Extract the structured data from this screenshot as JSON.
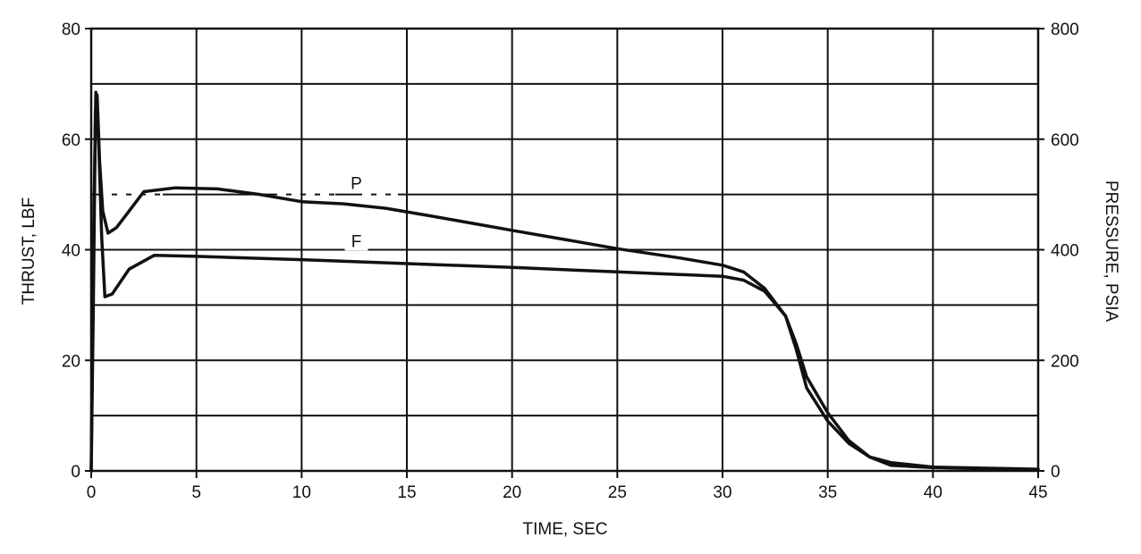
{
  "chart_data": {
    "type": "line",
    "xlabel": "TIME, SEC",
    "ylabel_left": "THRUST, LBF",
    "ylabel_right": "PRESSURE, PSIA",
    "xlim": [
      0,
      45
    ],
    "ylim_left": [
      0,
      80
    ],
    "ylim_right": [
      0,
      800
    ],
    "x_ticks": [
      0,
      5,
      10,
      15,
      20,
      25,
      30,
      35,
      40,
      45
    ],
    "y_ticks_left": [
      0,
      20,
      40,
      60,
      80
    ],
    "y_ticks_right": [
      0,
      200,
      400,
      600,
      800
    ],
    "grid": true,
    "series": [
      {
        "name": "P",
        "axis": "right",
        "points": [
          [
            0,
            0
          ],
          [
            0.1,
            300
          ],
          [
            0.2,
            650
          ],
          [
            0.28,
            680
          ],
          [
            0.4,
            560
          ],
          [
            0.55,
            470
          ],
          [
            0.8,
            430
          ],
          [
            1.2,
            440
          ],
          [
            1.8,
            470
          ],
          [
            2.5,
            505
          ],
          [
            4,
            512
          ],
          [
            6,
            510
          ],
          [
            8,
            500
          ],
          [
            10,
            487
          ],
          [
            12,
            483
          ],
          [
            14,
            475
          ],
          [
            16,
            462
          ],
          [
            20,
            435
          ],
          [
            25,
            402
          ],
          [
            28,
            385
          ],
          [
            30,
            372
          ],
          [
            31,
            360
          ],
          [
            32,
            330
          ],
          [
            33,
            280
          ],
          [
            33.5,
            230
          ],
          [
            34,
            170
          ],
          [
            35,
            105
          ],
          [
            36,
            55
          ],
          [
            37,
            25
          ],
          [
            38,
            10
          ],
          [
            40,
            6
          ],
          [
            45,
            2
          ]
        ]
      },
      {
        "name": "F",
        "axis": "left",
        "points": [
          [
            0,
            0
          ],
          [
            0.1,
            40
          ],
          [
            0.22,
            68.5
          ],
          [
            0.35,
            60
          ],
          [
            0.5,
            42
          ],
          [
            0.65,
            31.5
          ],
          [
            1,
            32
          ],
          [
            1.8,
            36.5
          ],
          [
            3,
            39
          ],
          [
            5,
            38.8
          ],
          [
            10,
            38.2
          ],
          [
            15,
            37.5
          ],
          [
            20,
            36.8
          ],
          [
            25,
            36
          ],
          [
            30,
            35.2
          ],
          [
            31,
            34.5
          ],
          [
            32,
            32.5
          ],
          [
            33,
            28
          ],
          [
            33.5,
            22
          ],
          [
            34,
            15
          ],
          [
            35,
            9
          ],
          [
            36,
            5
          ],
          [
            37,
            2.5
          ],
          [
            38,
            1.5
          ],
          [
            40,
            0.7
          ],
          [
            45,
            0.3
          ]
        ]
      }
    ],
    "annotations": [
      {
        "text": "P",
        "x": 12.6,
        "y_left": 51.5
      },
      {
        "text": "F",
        "x": 12.6,
        "y_left": 41
      }
    ]
  }
}
